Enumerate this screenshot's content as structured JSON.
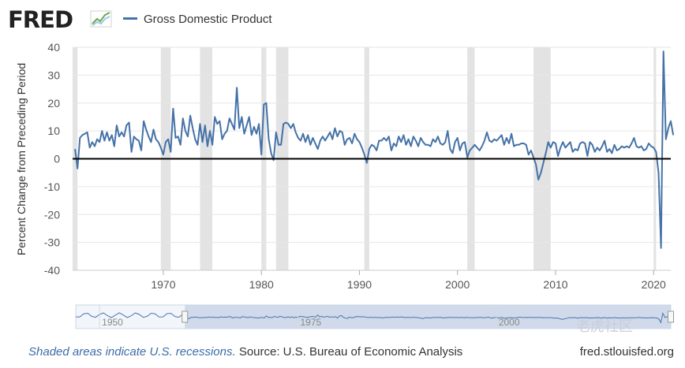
{
  "header": {
    "logo": "FRED",
    "legend_label": "Gross Domestic Product"
  },
  "footer": {
    "recessions_link": "Shaded areas indicate U.S. recessions.",
    "source": " Source: U.S. Bureau of Economic Analysis",
    "site": "fred.stlouisfed.org"
  },
  "watermark": "老虎社区",
  "colors": {
    "series": "#4572a7",
    "recession": "#e3e3e3",
    "zero_line": "#000000",
    "grid": "#e6e6e6",
    "navigator_fill": "#c7d3e6"
  },
  "navigator": {
    "labels": [
      "1950",
      "1975",
      "2000"
    ],
    "ticks": [
      1950,
      1975,
      2000
    ],
    "range": [
      1947.0,
      2022.0
    ],
    "selected": [
      1960.75,
      2022.0
    ]
  },
  "chart_data": {
    "type": "line",
    "title": "Gross Domestic Product",
    "ylabel": "Percent Change from Preceding Period",
    "xlabel": "",
    "xlim": [
      1960.75,
      2021.75
    ],
    "ylim": [
      -40,
      40
    ],
    "yticks": [
      40,
      30,
      20,
      10,
      0,
      -10,
      -20,
      -30,
      -40
    ],
    "xticks": [
      "1970",
      "1980",
      "1990",
      "2000",
      "2010",
      "2020"
    ],
    "recessions": [
      [
        1960.25,
        1961.25
      ],
      [
        1969.75,
        1970.75
      ],
      [
        1973.75,
        1975.0
      ],
      [
        1980.0,
        1980.5
      ],
      [
        1981.5,
        1982.75
      ],
      [
        1990.5,
        1991.0
      ],
      [
        2001.0,
        2001.75
      ],
      [
        2007.75,
        2009.5
      ],
      [
        2020.0,
        2020.25
      ]
    ],
    "series": [
      {
        "name": "Gross Domestic Product",
        "start": 1961.0,
        "step": 0.25,
        "values": [
          3.5,
          -3.5,
          7.5,
          8.5,
          9.0,
          9.5,
          4.0,
          6.0,
          4.5,
          7.0,
          6.0,
          10.0,
          6.5,
          9.5,
          6.5,
          8.5,
          4.5,
          12.0,
          8.0,
          9.5,
          8.0,
          12.0,
          13.0,
          2.5,
          8.0,
          7.0,
          6.5,
          3.0,
          13.5,
          10.5,
          8.0,
          6.0,
          10.5,
          7.0,
          6.0,
          4.0,
          1.5,
          6.0,
          7.0,
          2.5,
          18.0,
          7.5,
          8.0,
          5.0,
          14.5,
          10.0,
          8.0,
          15.5,
          11.0,
          7.0,
          5.0,
          12.5,
          6.0,
          12.0,
          4.5,
          10.0,
          5.0,
          15.0,
          12.5,
          13.5,
          7.0,
          9.0,
          10.0,
          14.5,
          12.5,
          10.5,
          25.5,
          11.0,
          15.0,
          9.0,
          12.0,
          15.0,
          8.5,
          11.5,
          9.0,
          12.5,
          1.5,
          19.5,
          20.0,
          7.0,
          2.0,
          -0.5,
          9.5,
          5.0,
          5.0,
          12.5,
          13.0,
          12.5,
          11.0,
          12.5,
          9.5,
          7.5,
          6.5,
          9.0,
          6.0,
          8.5,
          5.0,
          7.5,
          5.5,
          3.5,
          6.5,
          8.0,
          6.5,
          8.0,
          9.5,
          7.0,
          11.0,
          8.0,
          10.0,
          9.5,
          5.0,
          7.0,
          7.5,
          5.5,
          9.0,
          7.0,
          6.0,
          4.0,
          1.5,
          -1.5,
          3.5,
          5.0,
          4.5,
          3.0,
          6.5,
          6.5,
          7.5,
          6.5,
          8.0,
          3.0,
          5.5,
          4.5,
          8.0,
          6.0,
          8.5,
          5.0,
          7.0,
          4.5,
          8.0,
          6.5,
          4.5,
          7.5,
          6.0,
          5.0,
          5.0,
          4.5,
          7.0,
          6.0,
          8.0,
          5.5,
          5.0,
          6.0,
          10.0,
          3.5,
          2.0,
          6.0,
          7.5,
          3.0,
          5.5,
          6.0,
          0.5,
          3.0,
          4.0,
          5.0,
          4.0,
          3.0,
          4.5,
          6.5,
          9.5,
          6.5,
          6.0,
          7.0,
          6.5,
          7.5,
          8.5,
          5.0,
          7.5,
          5.5,
          9.0,
          4.5,
          5.0,
          5.0,
          5.5,
          5.5,
          5.0,
          1.5,
          3.0,
          0.5,
          -2.0,
          -7.5,
          -5.0,
          -1.5,
          2.0,
          6.0,
          4.0,
          6.0,
          5.5,
          1.0,
          4.0,
          6.0,
          4.0,
          5.0,
          6.0,
          2.5,
          3.5,
          3.0,
          5.5,
          6.0,
          5.5,
          1.0,
          6.0,
          5.0,
          2.5,
          4.0,
          3.0,
          4.5,
          6.5,
          2.5,
          3.5,
          2.0,
          5.0,
          3.0,
          3.5,
          4.5,
          4.0,
          4.5,
          4.0,
          5.5,
          7.5,
          4.5,
          4.0,
          4.5,
          3.0,
          3.5,
          5.5,
          4.5,
          4.0,
          2.5,
          -5.0,
          -32.0,
          38.5,
          7.0,
          11.0,
          13.5,
          8.5
        ]
      }
    ]
  }
}
